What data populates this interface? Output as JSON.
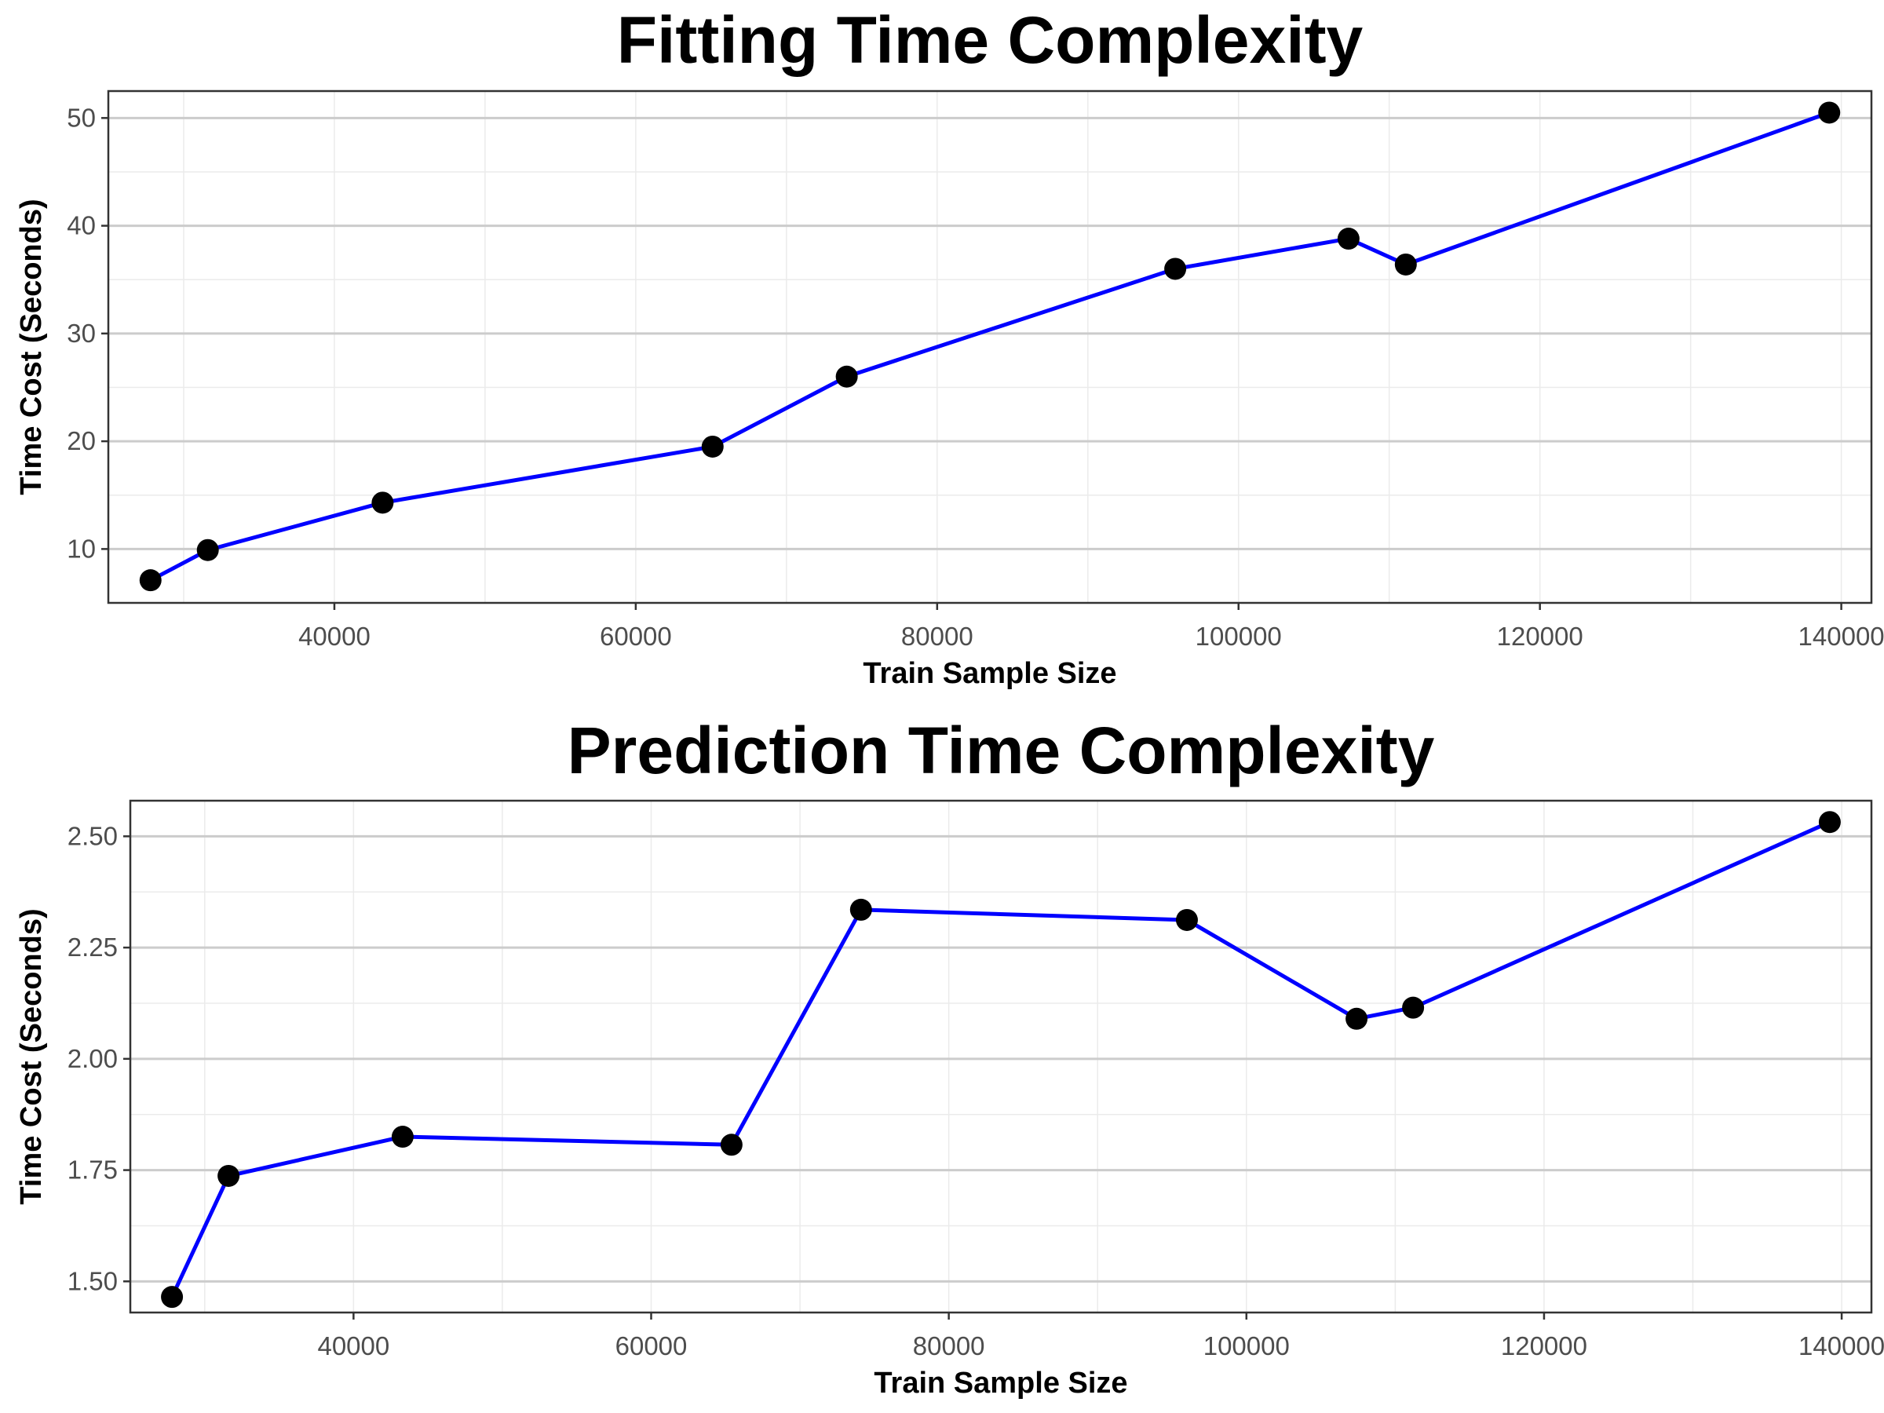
{
  "chart_data": [
    {
      "type": "line",
      "title": "Fitting Time Complexity",
      "xlabel": "Train Sample Size",
      "ylabel": "Time Cost (Seconds)",
      "xlim": [
        25000,
        142000
      ],
      "ylim": [
        5,
        52.5
      ],
      "xticks": [
        40000,
        60000,
        80000,
        100000,
        120000,
        140000
      ],
      "xtick_labels": [
        "40000",
        "60000",
        "80000",
        "100000",
        "120000",
        "140000"
      ],
      "yticks": [
        10,
        20,
        30,
        40,
        50
      ],
      "ytick_labels": [
        "10",
        "20",
        "30",
        "40",
        "50"
      ],
      "grid": true,
      "line_color": "#0000ff",
      "point_color": "#000000",
      "series": [
        {
          "x": [
            27800,
            31600,
            43200,
            65100,
            74000,
            95800,
            107300,
            111100,
            139200
          ],
          "y": [
            7.1,
            9.9,
            14.3,
            19.5,
            26.0,
            36.0,
            38.8,
            36.4,
            50.5
          ]
        }
      ]
    },
    {
      "type": "line",
      "title": "Prediction Time Complexity",
      "xlabel": "Train Sample Size",
      "ylabel": "Time Cost (Seconds)",
      "xlim": [
        25000,
        142000
      ],
      "ylim": [
        1.43,
        2.58
      ],
      "xticks": [
        40000,
        60000,
        80000,
        100000,
        120000,
        140000
      ],
      "xtick_labels": [
        "40000",
        "60000",
        "80000",
        "100000",
        "120000",
        "140000"
      ],
      "yticks": [
        1.5,
        1.75,
        2.0,
        2.25,
        2.5
      ],
      "ytick_labels": [
        "1.50",
        "1.75",
        "2.00",
        "2.25",
        "2.50"
      ],
      "grid": true,
      "line_color": "#0000ff",
      "point_color": "#000000",
      "series": [
        {
          "x": [
            27800,
            31600,
            43300,
            65400,
            74100,
            96000,
            107400,
            111200,
            139200
          ],
          "y": [
            1.465,
            1.737,
            1.825,
            1.807,
            2.335,
            2.312,
            2.09,
            2.115,
            2.532
          ]
        }
      ]
    }
  ]
}
